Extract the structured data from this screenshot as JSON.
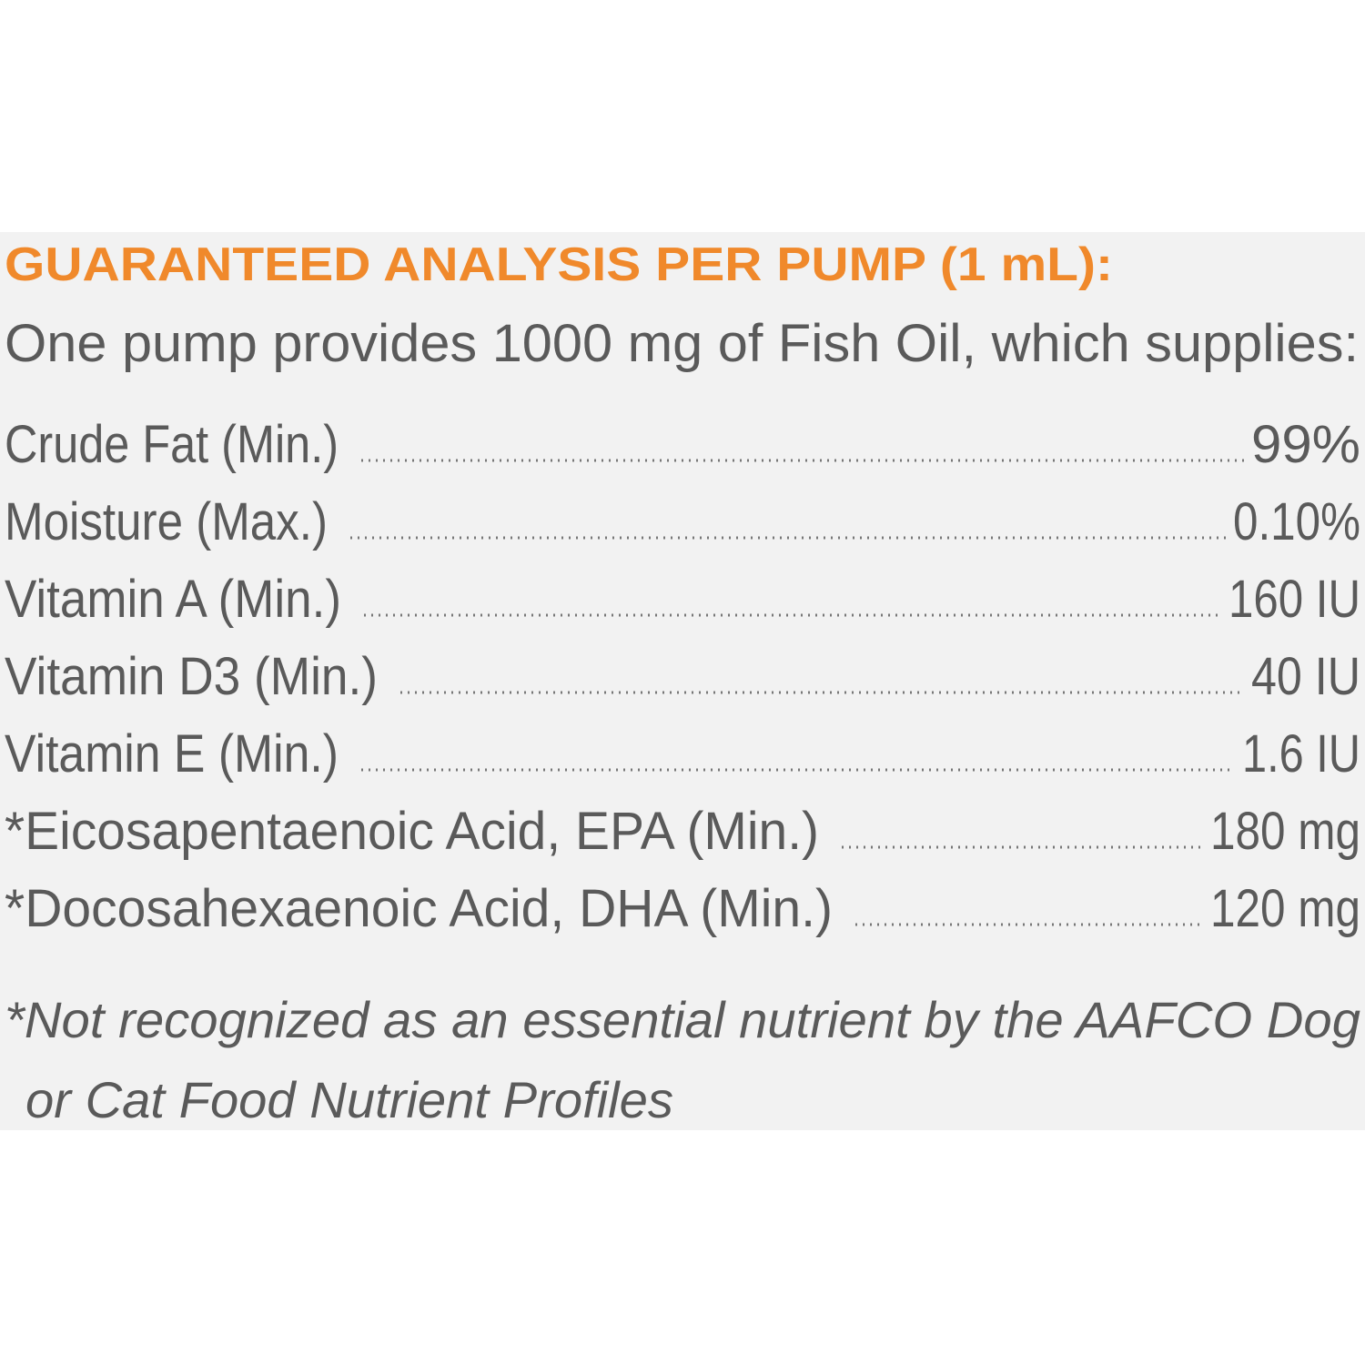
{
  "title": "GUARANTEED ANALYSIS PER  PUMP (1 mL):",
  "intro": "One pump provides 1000 mg of Fish Oil, which supplies:",
  "rows": [
    {
      "label": "Crude Fat (Min.)",
      "value": "99%"
    },
    {
      "label": "Moisture (Max.)",
      "value": "0.10%"
    },
    {
      "label": "Vitamin A (Min.)",
      "value": "160 IU"
    },
    {
      "label": "Vitamin D3 (Min.)",
      "value": "40 IU"
    },
    {
      "label": "Vitamin E (Min.)",
      "value": "1.6 IU"
    },
    {
      "label": "*Eicosapentaenoic Acid, EPA (Min.)",
      "value": "180 mg"
    },
    {
      "label": "*Docosahexaenoic Acid, DHA (Min.)",
      "value": "120 mg"
    }
  ],
  "footnote": [
    "*Not recognized as an essential nutrient by the AAFCO Dog",
    "or Cat Food Nutrient Profiles"
  ]
}
